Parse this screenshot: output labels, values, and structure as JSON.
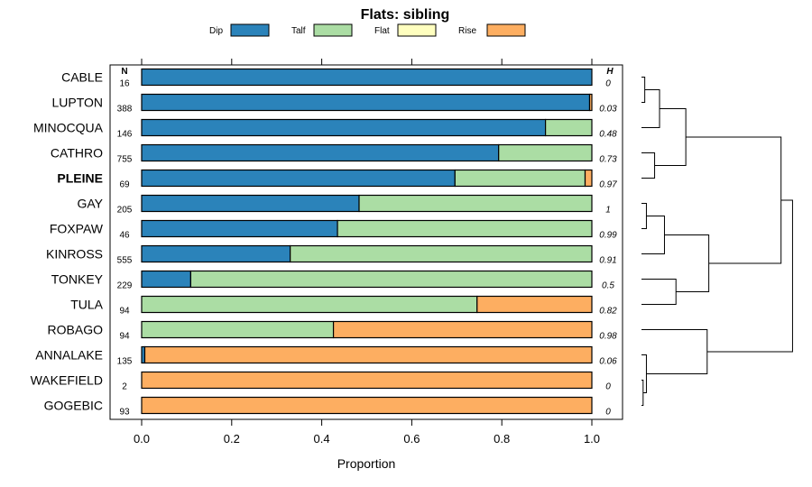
{
  "chart_data": {
    "type": "bar",
    "stacked": true,
    "orientation": "horizontal",
    "title": "Flats: sibling",
    "xlabel": "Proportion",
    "xlim": [
      0,
      1
    ],
    "x_ticks": [
      "0.0",
      "0.2",
      "0.4",
      "0.6",
      "0.8",
      "1.0"
    ],
    "n_header": "N",
    "h_header": "H",
    "legend_position": "top",
    "series": [
      {
        "name": "Dip",
        "color": "#2b83ba"
      },
      {
        "name": "Talf",
        "color": "#abdda4"
      },
      {
        "name": "Flat",
        "color": "#ffffbf"
      },
      {
        "name": "Rise",
        "color": "#fdae61"
      }
    ],
    "rows": [
      {
        "label": "CABLE",
        "bold": false,
        "n": "16",
        "h": "0",
        "values": [
          1.0,
          0.0,
          0.0,
          0.0
        ]
      },
      {
        "label": "LUPTON",
        "bold": false,
        "n": "388",
        "h": "0.03",
        "values": [
          0.995,
          0.0,
          0.0,
          0.005
        ]
      },
      {
        "label": "MINOCQUA",
        "bold": false,
        "n": "146",
        "h": "0.48",
        "values": [
          0.897,
          0.103,
          0.0,
          0.0
        ]
      },
      {
        "label": "CATHRO",
        "bold": false,
        "n": "755",
        "h": "0.73",
        "values": [
          0.793,
          0.207,
          0.0,
          0.0
        ]
      },
      {
        "label": "PLEINE",
        "bold": true,
        "n": "69",
        "h": "0.97",
        "values": [
          0.696,
          0.289,
          0.0,
          0.015
        ]
      },
      {
        "label": "GAY",
        "bold": false,
        "n": "205",
        "h": "1",
        "values": [
          0.483,
          0.517,
          0.0,
          0.0
        ]
      },
      {
        "label": "FOXPAW",
        "bold": false,
        "n": "46",
        "h": "0.99",
        "values": [
          0.435,
          0.565,
          0.0,
          0.0
        ]
      },
      {
        "label": "KINROSS",
        "bold": false,
        "n": "555",
        "h": "0.91",
        "values": [
          0.33,
          0.67,
          0.0,
          0.0
        ]
      },
      {
        "label": "TONKEY",
        "bold": false,
        "n": "229",
        "h": "0.5",
        "values": [
          0.109,
          0.891,
          0.0,
          0.0
        ]
      },
      {
        "label": "TULA",
        "bold": false,
        "n": "94",
        "h": "0.82",
        "values": [
          0.0,
          0.745,
          0.0,
          0.255
        ]
      },
      {
        "label": "ROBAGO",
        "bold": false,
        "n": "94",
        "h": "0.98",
        "values": [
          0.0,
          0.426,
          0.0,
          0.574
        ]
      },
      {
        "label": "ANNALAKE",
        "bold": false,
        "n": "135",
        "h": "0.06",
        "values": [
          0.007,
          0.0,
          0.0,
          0.993
        ]
      },
      {
        "label": "WAKEFIELD",
        "bold": false,
        "n": "2",
        "h": "0",
        "values": [
          0.0,
          0.0,
          0.0,
          1.0
        ]
      },
      {
        "label": "GOGEBIC",
        "bold": false,
        "n": "93",
        "h": "0",
        "values": [
          0.0,
          0.0,
          0.0,
          1.0
        ]
      }
    ],
    "dendrogram": {
      "merges": [
        {
          "left": 0,
          "right": 1,
          "height": 0.02
        },
        {
          "left": 3,
          "right": 4,
          "height": 0.08
        },
        {
          "left": 12,
          "right": 13,
          "height": 0.01
        },
        {
          "left": 11,
          "right": 102,
          "height": 0.03
        },
        {
          "left": 100,
          "right": 2,
          "height": 0.11
        },
        {
          "left": 5,
          "right": 6,
          "height": 0.03
        },
        {
          "left": 105,
          "right": 7,
          "height": 0.14
        },
        {
          "left": 8,
          "right": 9,
          "height": 0.21
        },
        {
          "left": 104,
          "right": 101,
          "height": 0.27
        },
        {
          "left": 106,
          "right": 107,
          "height": 0.41
        },
        {
          "left": 10,
          "right": 103,
          "height": 0.4
        },
        {
          "left": 108,
          "right": 109,
          "height": 0.85
        },
        {
          "left": 111,
          "right": 110,
          "height": 0.92
        }
      ]
    }
  }
}
